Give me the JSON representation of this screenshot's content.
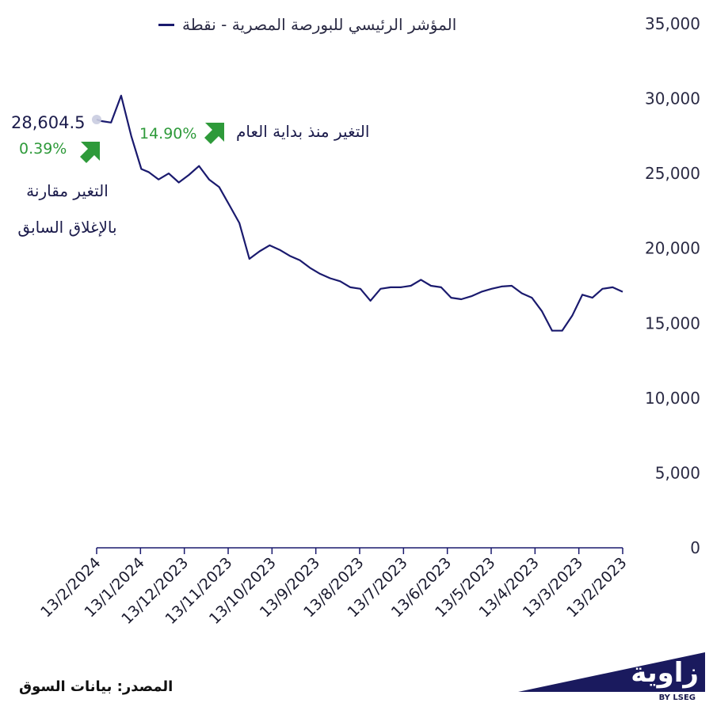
{
  "chart_data": {
    "type": "line",
    "title": "",
    "xlabel": "",
    "ylabel": "",
    "ylim": [
      0,
      35000
    ],
    "yticks": [
      "35,000",
      "30,000",
      "25,000",
      "20,000",
      "15,000",
      "10,000",
      "5,000",
      "0"
    ],
    "ytick_values": [
      35000,
      30000,
      25000,
      20000,
      15000,
      10000,
      5000,
      0
    ],
    "xticks": [
      "13/2/2024",
      "13/1/2024",
      "13/12/2023",
      "13/11/2023",
      "13/10/2023",
      "13/9/2023",
      "13/8/2023",
      "13/7/2023",
      "13/6/2023",
      "13/5/2023",
      "13/4/2023",
      "13/3/2023",
      "13/2/2023"
    ],
    "x_axis_direction": "reversed",
    "grid": false,
    "legend_position": "top",
    "series": [
      {
        "name": "المؤشر الرئيسي للبورصة المصرية - نقطة",
        "color": "#1a1a6e",
        "x": [
          "2023-02-13",
          "2023-02-20",
          "2023-02-27",
          "2023-03-06",
          "2023-03-13",
          "2023-03-20",
          "2023-03-27",
          "2023-04-03",
          "2023-04-10",
          "2023-04-17",
          "2023-04-24",
          "2023-05-01",
          "2023-05-08",
          "2023-05-15",
          "2023-05-22",
          "2023-05-29",
          "2023-06-05",
          "2023-06-12",
          "2023-06-19",
          "2023-06-26",
          "2023-07-03",
          "2023-07-10",
          "2023-07-17",
          "2023-07-24",
          "2023-07-31",
          "2023-08-07",
          "2023-08-14",
          "2023-08-21",
          "2023-08-28",
          "2023-09-04",
          "2023-09-11",
          "2023-09-18",
          "2023-09-25",
          "2023-10-02",
          "2023-10-09",
          "2023-10-16",
          "2023-10-23",
          "2023-10-30",
          "2023-11-06",
          "2023-11-13",
          "2023-11-20",
          "2023-11-27",
          "2023-12-04",
          "2023-12-11",
          "2023-12-18",
          "2023-12-25",
          "2024-01-01",
          "2024-01-08",
          "2024-01-13",
          "2024-01-20",
          "2024-01-27",
          "2024-02-03",
          "2024-02-10",
          "2024-02-13"
        ],
        "y": [
          17100,
          17400,
          17300,
          16700,
          16900,
          15500,
          14500,
          14500,
          15800,
          16700,
          17000,
          17500,
          17450,
          17300,
          17100,
          16800,
          16600,
          16700,
          17400,
          17500,
          17900,
          17500,
          17400,
          17400,
          17300,
          16500,
          17300,
          17400,
          17800,
          18000,
          18300,
          18700,
          19200,
          19500,
          19900,
          20200,
          19800,
          19300,
          21700,
          22900,
          24100,
          24600,
          25500,
          24900,
          24400,
          25000,
          24600,
          25100,
          25300,
          27500,
          30200,
          28400,
          28500,
          28604.5
        ]
      }
    ],
    "annotations": {
      "current_value": "28,604.5",
      "daily_change": "0.39%",
      "daily_change_label": "التغير مقارنة بالإغلاق السابق",
      "ytd_change": "14.90%",
      "ytd_change_label": "التغير منذ بداية العام",
      "positive_color": "#2e9a3a"
    }
  },
  "footer": {
    "source": "المصدر: بيانات السوق"
  },
  "logo": {
    "name": "زاوية",
    "sub": "BY LSEG"
  }
}
